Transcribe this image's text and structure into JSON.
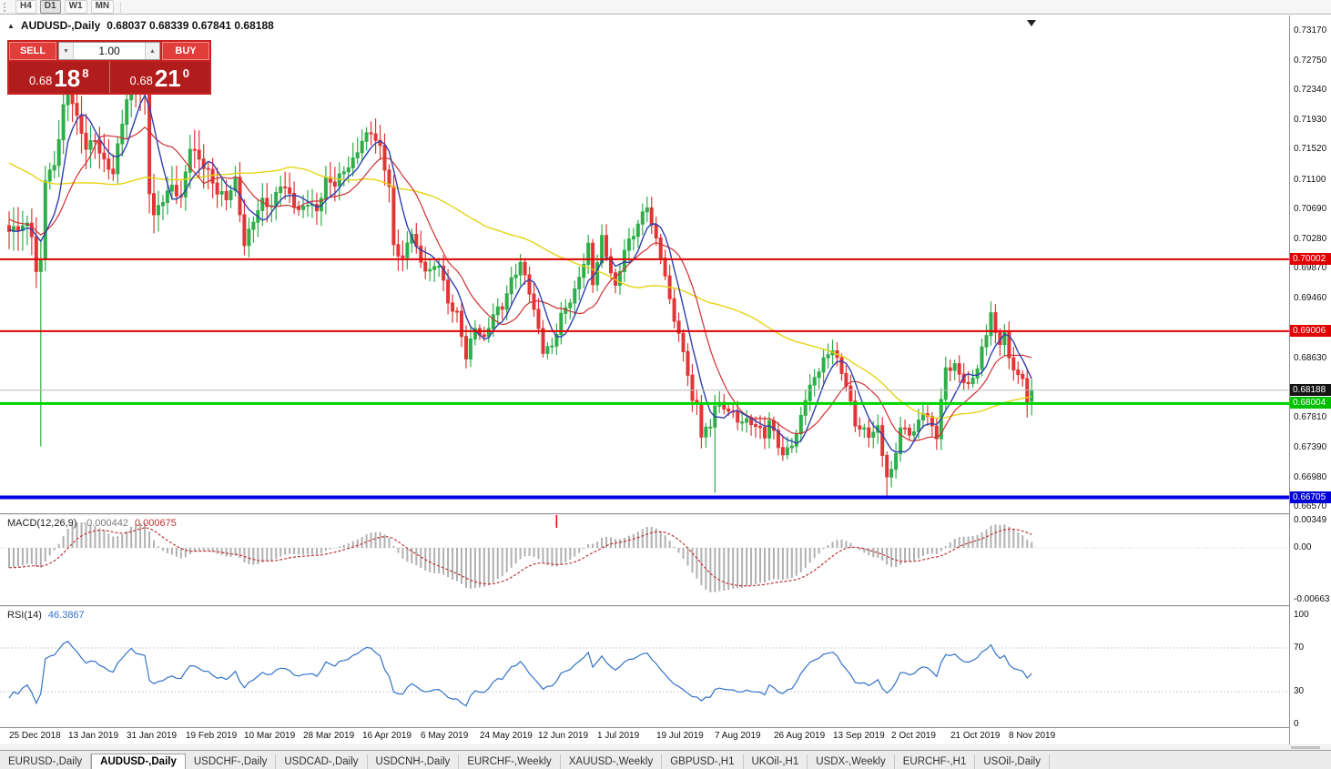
{
  "toolbar": {
    "timeframes": [
      {
        "label": "H4",
        "active": false
      },
      {
        "label": "D1",
        "active": true
      },
      {
        "label": "W1",
        "active": false
      },
      {
        "label": "MN",
        "active": false
      }
    ]
  },
  "chart_header": {
    "symbol_title": "AUDUSD-,Daily",
    "ohlc": "0.68037 0.68339 0.67841 0.68188"
  },
  "trade_panel": {
    "sell_label": "SELL",
    "buy_label": "BUY",
    "volume": "1.00",
    "sell_big": "0.68",
    "sell_pips": "18",
    "sell_pt": "8",
    "buy_big": "0.68",
    "buy_pips": "21",
    "buy_pt": "0"
  },
  "price_axis": {
    "ticks": [
      "0.73170",
      "0.72750",
      "0.72340",
      "0.71930",
      "0.71520",
      "0.71100",
      "0.70690",
      "0.70280",
      "0.69870",
      "0.69460",
      "0.68630",
      "0.67810",
      "0.67390",
      "0.66980",
      "0.66570"
    ],
    "badges": [
      {
        "value": "0.70002",
        "color": "#e00000"
      },
      {
        "value": "0.69006",
        "color": "#e00000"
      },
      {
        "value": "0.68188",
        "color": "#151515"
      },
      {
        "value": "0.68004",
        "color": "#00c000"
      },
      {
        "value": "0.66705",
        "color": "#0000d8"
      }
    ]
  },
  "macd_panel": {
    "name": "MACD(12,26,9)",
    "main_value": "-0.000442",
    "signal_value": "0.000675",
    "axis": [
      "0.00349",
      "0.00",
      "-0.00663"
    ]
  },
  "rsi_panel": {
    "name": "RSI(14)",
    "value": "46.3867",
    "axis": [
      "100",
      "70",
      "30",
      "0"
    ],
    "levels": [
      70,
      30
    ]
  },
  "date_axis": [
    {
      "t": "25 Dec 2018",
      "d": 0
    },
    {
      "t": "13 Jan 2019",
      "d": 13
    },
    {
      "t": "31 Jan 2019",
      "d": 26
    },
    {
      "t": "19 Feb 2019",
      "d": 39
    },
    {
      "t": "10 Mar 2019",
      "d": 52
    },
    {
      "t": "28 Mar 2019",
      "d": 65
    },
    {
      "t": "16 Apr 2019",
      "d": 78
    },
    {
      "t": "6 May 2019",
      "d": 91
    },
    {
      "t": "24 May 2019",
      "d": 104
    },
    {
      "t": "12 Jun 2019",
      "d": 117
    },
    {
      "t": "1 Jul 2019",
      "d": 130
    },
    {
      "t": "19 Jul 2019",
      "d": 143
    },
    {
      "t": "7 Aug 2019",
      "d": 156
    },
    {
      "t": "26 Aug 2019",
      "d": 169
    },
    {
      "t": "13 Sep 2019",
      "d": 182
    },
    {
      "t": "2 Oct 2019",
      "d": 195
    },
    {
      "t": "21 Oct 2019",
      "d": 208
    },
    {
      "t": "8 Nov 2019",
      "d": 221
    }
  ],
  "tabs": [
    {
      "label": "EURUSD-,Daily",
      "active": false
    },
    {
      "label": "AUDUSD-,Daily",
      "active": true
    },
    {
      "label": "USDCHF-,Daily",
      "active": false
    },
    {
      "label": "USDCAD-,Daily",
      "active": false
    },
    {
      "label": "USDCNH-,Daily",
      "active": false
    },
    {
      "label": "EURCHF-,Weekly",
      "active": false
    },
    {
      "label": "XAUUSD-,Weekly",
      "active": false
    },
    {
      "label": "GBPUSD-,H1",
      "active": false
    },
    {
      "label": "UKOil-,H1",
      "active": false
    },
    {
      "label": "USDX-,Weekly",
      "active": false
    },
    {
      "label": "EURCHF-,H1",
      "active": false
    },
    {
      "label": "USOil-,Daily",
      "active": false
    }
  ],
  "chart_data": {
    "type": "candlestick",
    "symbol": "AUDUSD",
    "timeframe": "Daily",
    "current": {
      "open": 0.68037,
      "high": 0.68339,
      "low": 0.67841,
      "close": 0.68188,
      "bid": 0.68188,
      "ask": 0.6821
    },
    "levels": [
      {
        "price": 0.70002,
        "color": "#e00000",
        "w": 2
      },
      {
        "price": 0.69006,
        "color": "#e00000",
        "w": 2
      },
      {
        "price": 0.68004,
        "color": "#00d400",
        "w": 3
      },
      {
        "price": 0.66705,
        "color": "#0000e0",
        "w": 4
      }
    ],
    "current_line": {
      "price": 0.68188,
      "color": "#bcbcbc",
      "w": 1
    },
    "bar_count": 227,
    "x0": 10,
    "x_step": 4.97,
    "ylim": [
      0.664846,
      0.733787
    ],
    "up_color": "#2fae4a",
    "down_color": "#e03636",
    "anchors": [
      [
        0,
        0.7036
      ],
      [
        2,
        0.7042
      ],
      [
        4,
        0.7048
      ],
      [
        5,
        0.7038
      ],
      [
        6,
        0.6984
      ],
      [
        7,
        0.7
      ],
      [
        8,
        0.7115
      ],
      [
        10,
        0.7128
      ],
      [
        12,
        0.7208
      ],
      [
        13,
        0.7232
      ],
      [
        14,
        0.7218
      ],
      [
        15,
        0.7195
      ],
      [
        17,
        0.7158
      ],
      [
        19,
        0.7168
      ],
      [
        21,
        0.7135
      ],
      [
        23,
        0.7118
      ],
      [
        25,
        0.7188
      ],
      [
        27,
        0.7252
      ],
      [
        28,
        0.7242
      ],
      [
        30,
        0.7228
      ],
      [
        31,
        0.7098
      ],
      [
        32,
        0.7062
      ],
      [
        34,
        0.7082
      ],
      [
        36,
        0.7098
      ],
      [
        38,
        0.7082
      ],
      [
        40,
        0.7158
      ],
      [
        42,
        0.7142
      ],
      [
        44,
        0.7122
      ],
      [
        46,
        0.7092
      ],
      [
        48,
        0.7082
      ],
      [
        50,
        0.7108
      ],
      [
        52,
        0.7022
      ],
      [
        54,
        0.7058
      ],
      [
        56,
        0.7082
      ],
      [
        58,
        0.7072
      ],
      [
        60,
        0.7102
      ],
      [
        62,
        0.7088
      ],
      [
        64,
        0.7068
      ],
      [
        66,
        0.7082
      ],
      [
        68,
        0.7068
      ],
      [
        70,
        0.7108
      ],
      [
        72,
        0.7102
      ],
      [
        74,
        0.7122
      ],
      [
        76,
        0.7138
      ],
      [
        78,
        0.7168
      ],
      [
        80,
        0.7178
      ],
      [
        82,
        0.7152
      ],
      [
        84,
        0.7098
      ],
      [
        85,
        0.7015
      ],
      [
        87,
        0.7002
      ],
      [
        89,
        0.7042
      ],
      [
        91,
        0.6996
      ],
      [
        93,
        0.6982
      ],
      [
        95,
        0.6992
      ],
      [
        97,
        0.6938
      ],
      [
        99,
        0.6925
      ],
      [
        101,
        0.6868
      ],
      [
        103,
        0.6908
      ],
      [
        105,
        0.6888
      ],
      [
        107,
        0.6922
      ],
      [
        109,
        0.6933
      ],
      [
        111,
        0.6972
      ],
      [
        113,
        0.6998
      ],
      [
        115,
        0.6958
      ],
      [
        118,
        0.6872
      ],
      [
        120,
        0.6876
      ],
      [
        122,
        0.6922
      ],
      [
        125,
        0.6958
      ],
      [
        128,
        0.7018
      ],
      [
        129,
        0.6965
      ],
      [
        131,
        0.7026
      ],
      [
        134,
        0.696
      ],
      [
        136,
        0.7016
      ],
      [
        138,
        0.7038
      ],
      [
        141,
        0.7074
      ],
      [
        142,
        0.7044
      ],
      [
        144,
        0.7004
      ],
      [
        146,
        0.6944
      ],
      [
        149,
        0.6874
      ],
      [
        150,
        0.6846
      ],
      [
        151,
        0.6802
      ],
      [
        152,
        0.68
      ],
      [
        153,
        0.6756
      ],
      [
        155,
        0.6766
      ],
      [
        156,
        0.6798
      ],
      [
        159,
        0.6794
      ],
      [
        161,
        0.678
      ],
      [
        164,
        0.6774
      ],
      [
        167,
        0.6754
      ],
      [
        168,
        0.6774
      ],
      [
        171,
        0.673
      ],
      [
        174,
        0.6758
      ],
      [
        176,
        0.6808
      ],
      [
        180,
        0.6858
      ],
      [
        182,
        0.6878
      ],
      [
        185,
        0.683
      ],
      [
        187,
        0.6772
      ],
      [
        190,
        0.6754
      ],
      [
        192,
        0.6764
      ],
      [
        194,
        0.67
      ],
      [
        195,
        0.6708
      ],
      [
        197,
        0.6768
      ],
      [
        200,
        0.6758
      ],
      [
        202,
        0.6788
      ],
      [
        205,
        0.6756
      ],
      [
        207,
        0.6852
      ],
      [
        209,
        0.6854
      ],
      [
        212,
        0.6822
      ],
      [
        214,
        0.6848
      ],
      [
        216,
        0.6896
      ],
      [
        217,
        0.6928
      ],
      [
        218,
        0.6896
      ],
      [
        219,
        0.6888
      ],
      [
        220,
        0.6902
      ],
      [
        221,
        0.6862
      ],
      [
        222,
        0.6852
      ],
      [
        223,
        0.684
      ],
      [
        224,
        0.683
      ],
      [
        225,
        0.6804
      ],
      [
        226,
        0.68188
      ]
    ],
    "special": {
      "7": {
        "l": 0.6741
      },
      "85": {
        "l": 0.7005
      },
      "156": {
        "l": 0.6677
      },
      "194": {
        "l": 0.6671
      },
      "225": {
        "l": 0.6781
      },
      "226": {
        "o": 0.68037,
        "h": 0.68339,
        "l": 0.67841,
        "c": 0.68188
      }
    },
    "ma": [
      {
        "period": 55,
        "color": "#e6d414",
        "width": 1.4
      },
      {
        "period": 13,
        "color": "#d03030",
        "width": 1.2
      },
      {
        "period": 6,
        "color": "#2f3fae",
        "width": 1.4
      }
    ],
    "macd": {
      "fast": 12,
      "slow": 26,
      "signal": 9,
      "current_macd": -0.000442,
      "current_signal": 0.000675,
      "ylim": [
        -0.007371,
        0.004212
      ],
      "hist_color": "#b0b0b0",
      "signal_color": "#c03333",
      "marker_day": 121
    },
    "rsi": {
      "period": 14,
      "current": 46.3867,
      "color": "#3272c8",
      "levels": [
        70,
        30
      ]
    }
  }
}
